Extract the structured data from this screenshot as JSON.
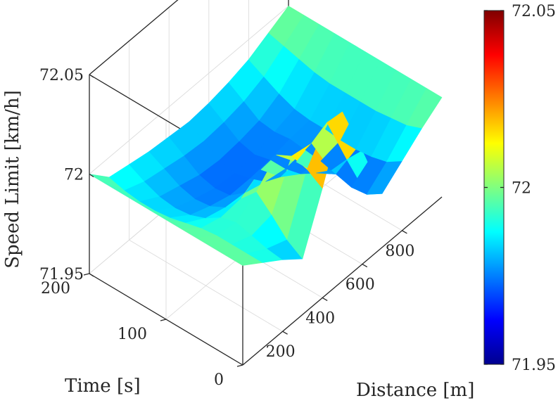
{
  "chart_data": {
    "type": "surface",
    "title": "",
    "xlabel": "Distance [m]",
    "ylabel": "Time [s]",
    "zlabel": "Speed Limit [km/h]",
    "xlim": [
      0,
      1000
    ],
    "ylim": [
      0,
      200
    ],
    "zlim": [
      71.95,
      72.05
    ],
    "x_ticks": [
      200,
      400,
      600,
      800
    ],
    "x_tick_labels": [
      "200",
      "400",
      "600",
      "800"
    ],
    "y_ticks": [
      0,
      100,
      200
    ],
    "y_tick_labels": [
      "0",
      "100",
      "200"
    ],
    "z_ticks": [
      71.95,
      72,
      72.05
    ],
    "z_tick_labels": [
      "71.95",
      "72",
      "72.05"
    ],
    "colormap": "jet",
    "colorbar": {
      "range": [
        71.95,
        72.05
      ],
      "ticks": [
        71.95,
        72,
        72.05
      ],
      "tick_labels": [
        "71.95",
        "72",
        "72.05"
      ]
    },
    "grid": true,
    "surface": {
      "x": [
        0,
        100,
        200,
        300,
        400,
        500,
        600,
        700,
        800,
        900,
        1000
      ],
      "y": [
        0,
        20,
        40,
        60,
        80,
        100,
        120,
        140,
        160,
        180,
        200
      ],
      "z": [
        [
          72.0,
          71.993,
          71.986,
          71.978,
          72.005,
          72.035,
          72.007,
          71.977,
          71.985,
          71.993,
          72.0
        ],
        [
          72.0,
          71.993,
          71.987,
          71.983,
          72.01,
          72.025,
          71.998,
          71.972,
          71.98,
          71.99,
          72.0
        ],
        [
          72.0,
          71.993,
          71.989,
          71.991,
          72.012,
          72.01,
          71.988,
          71.971,
          71.978,
          71.989,
          72.0
        ],
        [
          72.0,
          71.993,
          71.991,
          71.998,
          72.008,
          71.996,
          71.982,
          71.973,
          71.977,
          71.988,
          72.0
        ],
        [
          72.0,
          71.992,
          71.989,
          71.99,
          71.996,
          71.984,
          71.977,
          71.975,
          71.977,
          71.988,
          72.0
        ],
        [
          72.0,
          71.99,
          71.984,
          71.981,
          71.98,
          71.977,
          71.975,
          71.976,
          71.978,
          71.988,
          72.0
        ],
        [
          72.0,
          71.988,
          71.981,
          71.977,
          71.974,
          71.974,
          71.975,
          71.977,
          71.978,
          71.988,
          72.0
        ],
        [
          72.0,
          71.987,
          71.98,
          71.976,
          71.973,
          71.972,
          71.973,
          71.976,
          71.979,
          71.989,
          72.0
        ],
        [
          72.0,
          71.987,
          71.981,
          71.978,
          71.975,
          71.974,
          71.975,
          71.977,
          71.982,
          71.991,
          72.0
        ],
        [
          72.0,
          71.988,
          71.984,
          71.982,
          71.98,
          71.979,
          71.98,
          71.982,
          71.986,
          71.993,
          72.0
        ],
        [
          72.0,
          71.99,
          71.988,
          71.986,
          71.985,
          71.984,
          71.985,
          71.987,
          71.99,
          71.995,
          72.0
        ]
      ]
    }
  }
}
